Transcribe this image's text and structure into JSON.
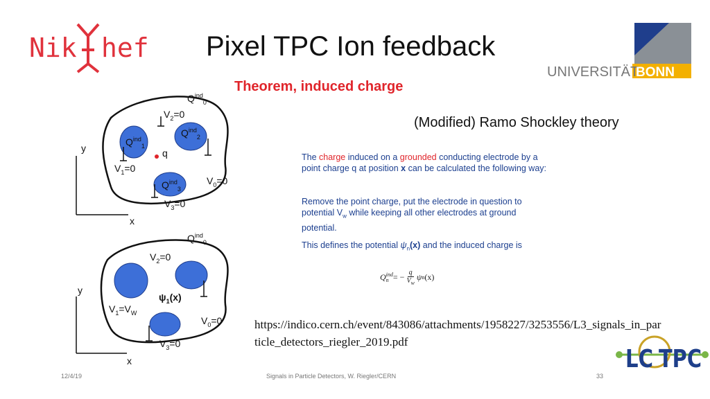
{
  "header": {
    "title": "Pixel TPC Ion feedback",
    "logo_left": [
      "Nik",
      "hef"
    ],
    "logo_right": [
      "UNIVERSITÄT",
      "BONN"
    ]
  },
  "content": {
    "heading": "Theorem, induced charge",
    "subtitle": "(Modified) Ramo Shockley theory",
    "diagram_top": {
      "labels": [
        [
          "Q",
          "ind",
          "0"
        ],
        [
          "V",
          "2",
          "=0"
        ],
        [
          "Q",
          "ind",
          "1"
        ],
        [
          "Q",
          "ind",
          "2"
        ],
        [
          "q"
        ],
        [
          "V",
          "1",
          "=0"
        ],
        [
          "Q",
          "ind",
          "3"
        ],
        [
          "V",
          "0",
          "=0"
        ],
        [
          "V",
          "3",
          "=0"
        ],
        [
          "y"
        ],
        [
          "x"
        ]
      ]
    },
    "diagram_bottom": {
      "labels": [
        [
          "Q",
          "ind",
          "0"
        ],
        [
          "V",
          "2",
          "=0"
        ],
        [
          "ψ",
          "1",
          "(x)"
        ],
        [
          "V",
          "1",
          "=V",
          "W"
        ],
        [
          "V",
          "0",
          "=0"
        ],
        [
          "V",
          "3",
          "=0"
        ],
        [
          "y"
        ],
        [
          "x"
        ]
      ]
    },
    "paragraphs": [
      [
        "The ",
        "charge",
        " induced on a ",
        "grounded",
        " conducting electrode by a point charge q at position ",
        "x",
        " can be calculated the following way:"
      ],
      [
        "Remove the point charge, put the electrode in question to potential V",
        "w",
        " while keeping all other electrodes at ground potential."
      ],
      [
        "This defines the potential ",
        "ψ",
        "n",
        "(x)",
        " and the induced charge is"
      ]
    ],
    "formula": [
      "Q",
      "ind",
      "n",
      " = − ",
      "q",
      "V",
      "w",
      "ψ",
      "n",
      "(x)"
    ],
    "source_url": "https://indico.cern.ch/event/843086/attachments/1958227/3253556/L3_signals_in_particle_detectors_riegler_2019.pdf"
  },
  "footer": {
    "date": "12/4/19",
    "credit": "Signals in Particle Detectors, W. Riegler/CERN",
    "page": "33",
    "logo": [
      "LC",
      "TPC"
    ]
  }
}
